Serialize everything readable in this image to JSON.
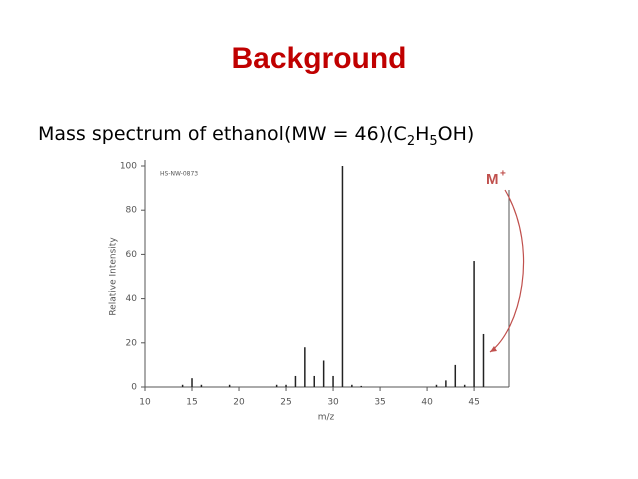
{
  "title": "Background",
  "subtitle": {
    "text": "Mass spectrum of ethanol(MW = 46)(C",
    "sub1": "2",
    "mid": "H",
    "sub2": "5",
    "end": "OH)"
  },
  "chart_data": {
    "type": "bar",
    "x": [
      14,
      15,
      16,
      19,
      24,
      25,
      26,
      27,
      28,
      29,
      30,
      31,
      32,
      33,
      41,
      42,
      43,
      44,
      45,
      46
    ],
    "values": [
      1,
      4,
      1,
      1,
      1,
      1,
      5,
      18,
      5,
      12,
      5,
      100,
      1,
      0.5,
      1,
      3,
      10,
      1,
      57,
      24
    ],
    "color": "#222222",
    "xlim": [
      10,
      48.5
    ],
    "ylim": [
      0,
      100
    ],
    "xticks": [
      10,
      15,
      20,
      25,
      30,
      35,
      40,
      45
    ],
    "yticks": [
      0,
      20,
      40,
      60,
      80,
      100
    ],
    "x_label": "m/z",
    "y_label": "Relative Intensity",
    "spectrum_id": "HS-NW-0873",
    "annotation": {
      "text": "M",
      "superscript": "+",
      "color": "#c0504d"
    }
  }
}
